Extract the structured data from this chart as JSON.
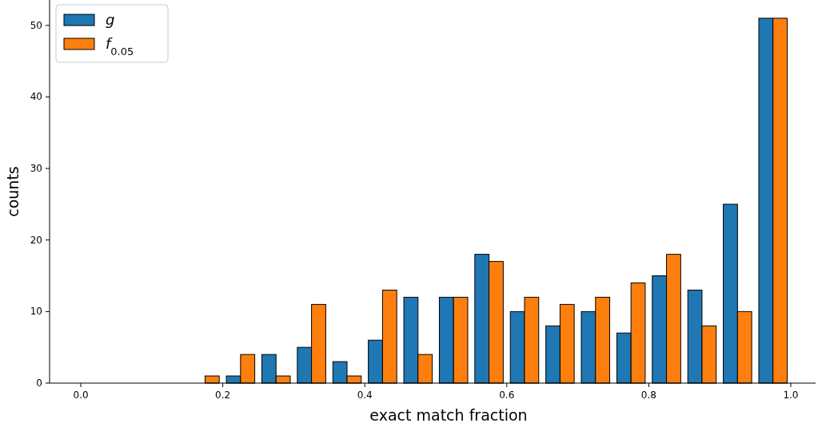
{
  "chart_data": {
    "type": "histogram",
    "xlabel": "exact match fraction",
    "ylabel": "counts",
    "bins": [
      0,
      0.05,
      0.1,
      0.15,
      0.2,
      0.25,
      0.3,
      0.35,
      0.4,
      0.45,
      0.5,
      0.55,
      0.6,
      0.65,
      0.7,
      0.75,
      0.8,
      0.85,
      0.9,
      0.95,
      1.0
    ],
    "series": [
      {
        "name": "g",
        "color": "#1f77b4",
        "values": [
          0,
          0,
          0,
          0,
          1,
          4,
          5,
          3,
          6,
          12,
          12,
          18,
          10,
          8,
          10,
          7,
          15,
          13,
          25,
          51
        ]
      },
      {
        "name": "f$_{0.05}$",
        "color": "#ff7f0e",
        "values": [
          0,
          0,
          0,
          1,
          4,
          1,
          11,
          1,
          13,
          4,
          12,
          17,
          12,
          11,
          12,
          14,
          18,
          8,
          10,
          51
        ]
      }
    ],
    "xlim": [
      -0.044,
      1.035
    ],
    "xticks": [
      {
        "value": 0,
        "label": "0.0"
      },
      0.2,
      0.4,
      0.6,
      0.8,
      {
        "value": 1,
        "label": "1.0"
      }
    ],
    "ylim": [
      0,
      53.55
    ],
    "yticks": [
      0,
      10,
      20,
      30,
      40,
      50
    ],
    "legend": "top left",
    "grid": false
  }
}
